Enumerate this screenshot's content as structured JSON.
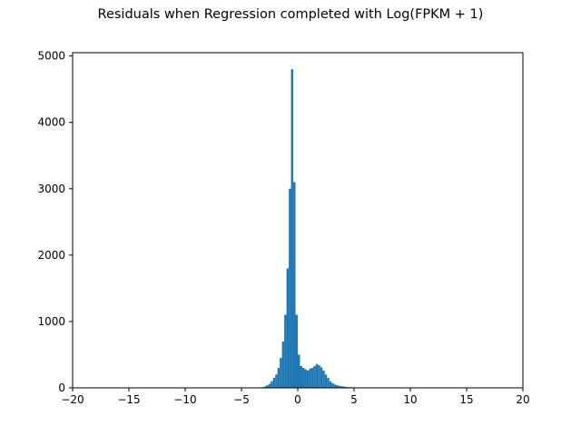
{
  "chart_data": {
    "type": "bar",
    "subtype": "histogram",
    "title": "Residuals when Regression completed with Log(FPKM + 1)",
    "xlabel": "",
    "ylabel": "",
    "xlim": [
      -20,
      20
    ],
    "ylim": [
      0,
      5050
    ],
    "xticks": [
      -20,
      -15,
      -10,
      -5,
      0,
      5,
      10,
      15,
      20
    ],
    "yticks": [
      0,
      1000,
      2000,
      3000,
      4000,
      5000
    ],
    "bar_color": "#1f77b4",
    "bins": {
      "x_start": [
        -3.2,
        -3.0,
        -2.8,
        -2.6,
        -2.4,
        -2.2,
        -2.0,
        -1.8,
        -1.6,
        -1.4,
        -1.2,
        -1.0,
        -0.8,
        -0.6,
        -0.4,
        -0.2,
        0.0,
        0.2,
        0.4,
        0.6,
        0.8,
        1.0,
        1.2,
        1.4,
        1.6,
        1.8,
        2.0,
        2.2,
        2.4,
        2.6,
        2.8,
        3.0,
        3.2,
        3.4,
        3.6,
        3.8,
        4.0,
        4.2,
        4.4,
        4.6,
        4.8,
        5.0,
        5.2,
        5.4,
        5.6,
        5.8,
        6.0
      ],
      "width": 0.2,
      "counts": [
        10,
        20,
        40,
        60,
        100,
        150,
        200,
        300,
        450,
        700,
        1100,
        1800,
        3000,
        4800,
        3100,
        1100,
        500,
        330,
        300,
        280,
        260,
        290,
        300,
        330,
        360,
        340,
        310,
        260,
        200,
        150,
        100,
        70,
        50,
        40,
        30,
        25,
        20,
        15,
        10,
        10,
        8,
        6,
        5,
        4,
        3,
        2,
        2
      ]
    }
  }
}
